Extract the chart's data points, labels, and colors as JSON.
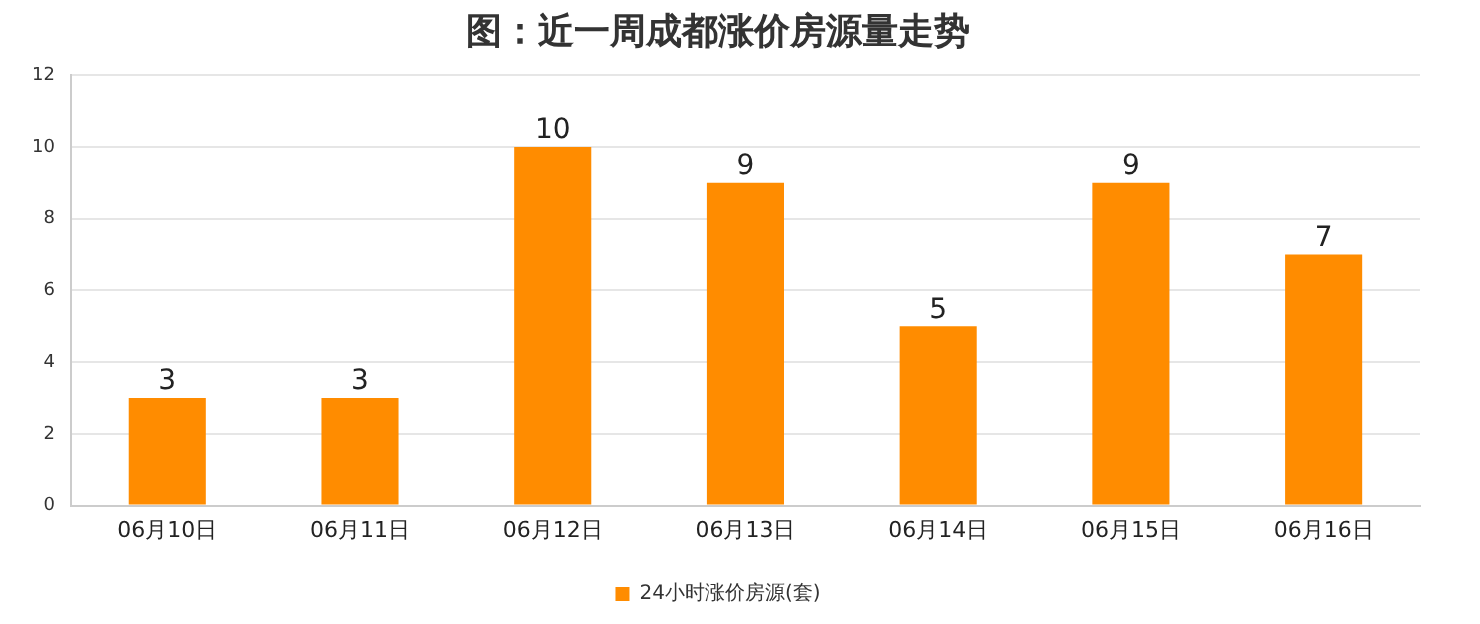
{
  "chart_data": {
    "type": "bar",
    "title": "图：近一周成都涨价房源量走势",
    "categories": [
      "06月10日",
      "06月11日",
      "06月12日",
      "06月13日",
      "06月14日",
      "06月15日",
      "06月16日"
    ],
    "series": [
      {
        "name": "24小时涨价房源(套)",
        "color": "#ff8c00",
        "values": [
          3,
          3,
          10,
          9,
          5,
          9,
          7
        ]
      }
    ],
    "ylim": [
      0,
      12
    ],
    "yticks": [
      0,
      2,
      4,
      6,
      8,
      10,
      12
    ],
    "grid": "y",
    "legend": "bottom",
    "data_labels": true
  }
}
